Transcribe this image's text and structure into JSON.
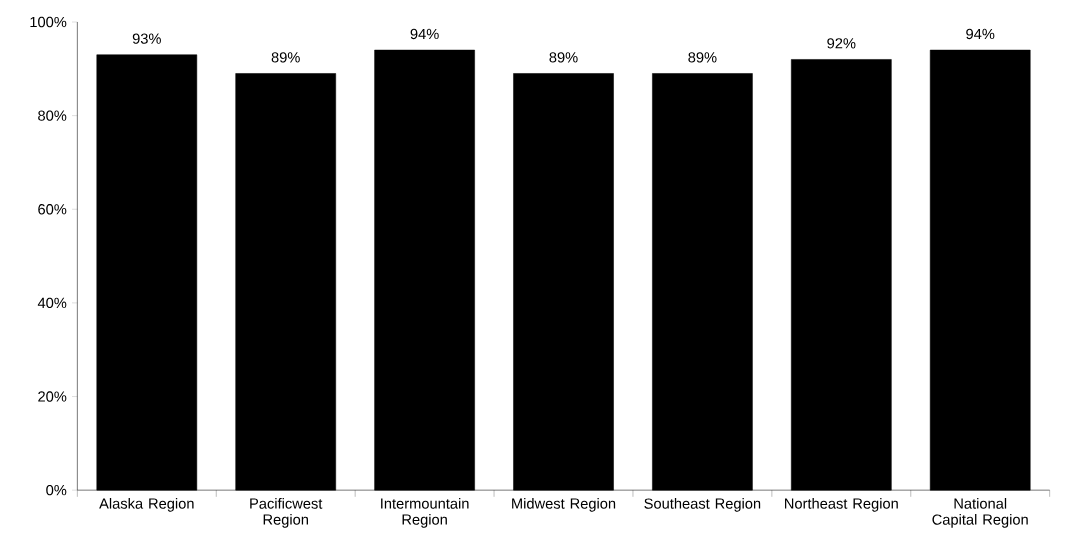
{
  "chart_data": {
    "type": "bar",
    "categories": [
      "Alaska Region",
      "Pacificwest Region",
      "Intermountain Region",
      "Midwest Region",
      "Southeast Region",
      "Northeast Region",
      "National Capital Region"
    ],
    "values": [
      93,
      89,
      94,
      89,
      89,
      92,
      94
    ],
    "value_labels": [
      "93%",
      "89%",
      "94%",
      "89%",
      "89%",
      "92%",
      "94%"
    ],
    "color": "#000000",
    "ylim": [
      0,
      100
    ],
    "yticks": [
      {
        "value": 0,
        "label": "0%"
      },
      {
        "value": 20,
        "label": "20%"
      },
      {
        "value": 40,
        "label": "40%"
      },
      {
        "value": 60,
        "label": "60%"
      },
      {
        "value": 80,
        "label": "80%"
      },
      {
        "value": 100,
        "label": "100%"
      }
    ],
    "grid": false
  }
}
